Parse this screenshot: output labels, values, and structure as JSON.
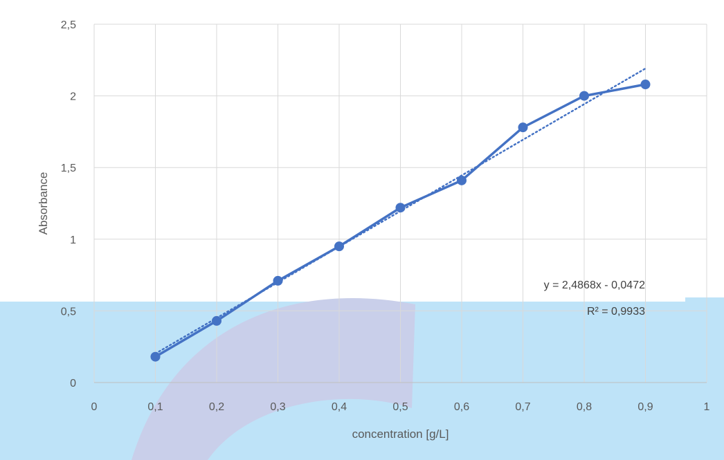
{
  "chart_data": {
    "type": "scatter",
    "xlabel": "concentration [g/L]",
    "ylabel": "Absorbance",
    "xlim": [
      0,
      1
    ],
    "ylim": [
      0,
      2.5
    ],
    "x_ticks": [
      "0",
      "0,1",
      "0,2",
      "0,3",
      "0,4",
      "0,5",
      "0,6",
      "0,7",
      "0,8",
      "0,9",
      "1"
    ],
    "y_ticks": [
      "0",
      "0,5",
      "1",
      "1,5",
      "2",
      "2,5"
    ],
    "grid": true,
    "series": [
      {
        "x": [
          0.1,
          0.2,
          0.3,
          0.4,
          0.5,
          0.6,
          0.7,
          0.8,
          0.9
        ],
        "y": [
          0.18,
          0.43,
          0.71,
          0.95,
          1.22,
          1.41,
          1.78,
          2.0,
          2.08
        ],
        "color": "#4472C4"
      }
    ],
    "trendline": {
      "slope": 2.4868,
      "intercept": -0.0472,
      "x_range": [
        0.1,
        0.9
      ],
      "color": "#4472C4",
      "style": "dotted",
      "equation_label": "y = 2,4868x - 0,0472",
      "r2_label": "R² = 0,9933"
    },
    "background": {
      "band_color": "#BEE3F8",
      "swoosh_color": "#C9CFEA"
    }
  }
}
